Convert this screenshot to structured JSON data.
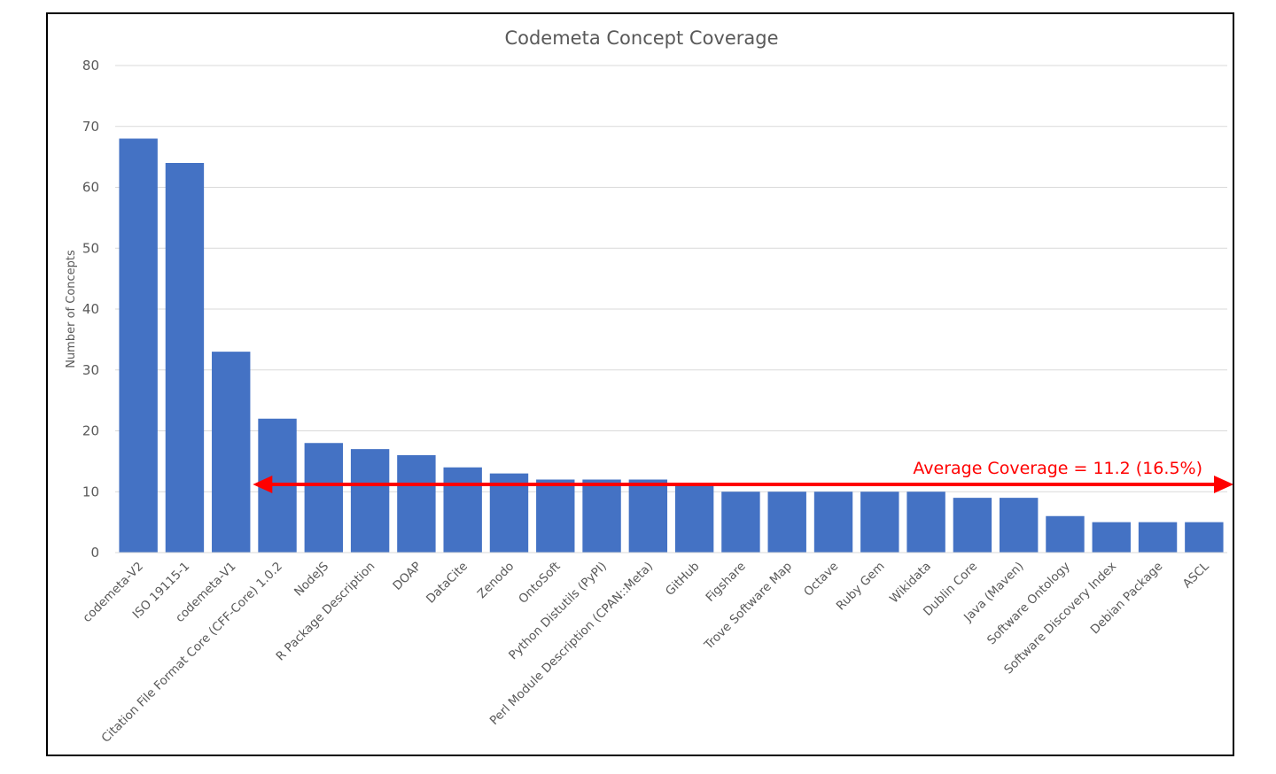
{
  "chart_data": {
    "type": "bar",
    "title": "Codemeta Concept Coverage",
    "xlabel": "",
    "ylabel": "Number of Concepts",
    "ylim": [
      0,
      80
    ],
    "yticks": [
      0,
      10,
      20,
      30,
      40,
      50,
      60,
      70,
      80
    ],
    "grid": true,
    "bar_color": "#4472C4",
    "categories": [
      "codemeta-V2",
      "ISO 19115-1",
      "codemeta-V1",
      "Citation File Format Core (CFF-Core) 1.0.2",
      "NodeJS",
      "R Package Description",
      "DOAP",
      "DataCite",
      "Zenodo",
      "OntoSoft",
      "Python Distutils (PyPI)",
      "Perl Module Description (CPAN::Meta)",
      "GitHub",
      "Figshare",
      "Trove Software Map",
      "Octave",
      "Ruby Gem",
      "Wikidata",
      "Dublin Core",
      "Java (Maven)",
      "Software Ontology",
      "Software Discovery Index",
      "Debian Package",
      "ASCL"
    ],
    "values": [
      68,
      64,
      33,
      22,
      18,
      17,
      16,
      14,
      13,
      12,
      12,
      12,
      11,
      10,
      10,
      10,
      10,
      10,
      9,
      9,
      6,
      5,
      5,
      5
    ],
    "annotation": {
      "text": "Average Coverage = 11.2 (16.5%)",
      "value": 11.2,
      "color": "#FF0000",
      "arrow": "double-headed",
      "from_category": "Citation File Format Core (CFF-Core) 1.0.2"
    }
  }
}
